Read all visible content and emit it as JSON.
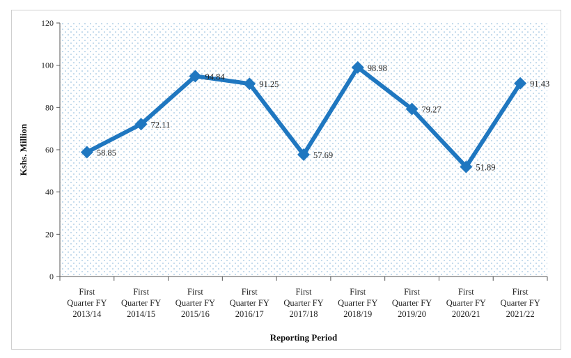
{
  "chart_data": {
    "type": "line",
    "title": "",
    "xlabel": "Reporting Period",
    "ylabel": "Kshs. Million",
    "ylim": [
      0,
      120
    ],
    "yticks": [
      0,
      20,
      40,
      60,
      80,
      100,
      120
    ],
    "grid": "dotted background",
    "legend": "none",
    "categories": [
      [
        "First",
        "Quarter FY",
        "2013/14"
      ],
      [
        "First",
        "Quarter FY",
        "2014/15"
      ],
      [
        "First",
        "Quarter FY",
        "2015/16"
      ],
      [
        "First",
        "Quarter FY",
        "2016/17"
      ],
      [
        "First",
        "Quarter FY",
        "2017/18"
      ],
      [
        "First",
        "Quarter FY",
        "2018/19"
      ],
      [
        "First",
        "Quarter FY",
        "2019/20"
      ],
      [
        "First",
        "Quarter FY",
        "2020/21"
      ],
      [
        "First",
        "Quarter FY",
        "2021/22"
      ]
    ],
    "series": [
      {
        "values": [
          58.85,
          72.11,
          94.84,
          91.25,
          57.69,
          98.98,
          79.27,
          51.89,
          91.43
        ],
        "labels": [
          "58.85",
          "72.11",
          "94.84",
          "91.25",
          "57.69",
          "98.98",
          "79.27",
          "51.89",
          "91.43"
        ]
      }
    ],
    "colors": {
      "line": "#1f77c0",
      "marker": "#1f77c0",
      "plot_dots": "#9cc3e0",
      "axis": "#555555"
    }
  }
}
